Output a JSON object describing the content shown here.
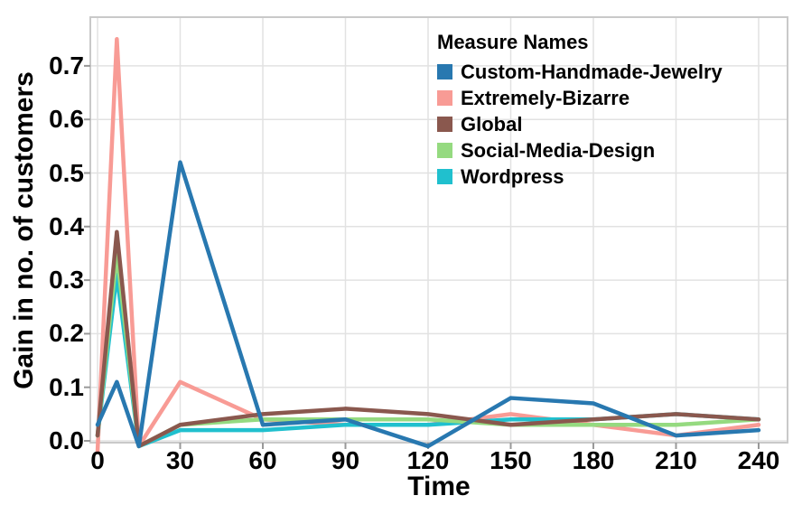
{
  "chart_data": {
    "type": "line",
    "title": "",
    "xlabel": "Time",
    "ylabel": "Gain in no. of customers",
    "legend_title": "Measure Names",
    "legend_position": "top-right-inside",
    "grid": true,
    "x": [
      0,
      7,
      15,
      30,
      60,
      90,
      120,
      150,
      180,
      210,
      240
    ],
    "xticks": [
      0,
      30,
      60,
      90,
      120,
      150,
      180,
      210,
      240
    ],
    "ytick_labels": [
      "0.0",
      "0.1",
      "0.2",
      "0.3",
      "0.4",
      "0.5",
      "0.6",
      "0.7"
    ],
    "yticks": [
      0.0,
      0.1,
      0.2,
      0.3,
      0.4,
      0.5,
      0.6,
      0.7
    ],
    "xlim": [
      0,
      240
    ],
    "ylim": [
      -0.03,
      0.79
    ],
    "series": [
      {
        "name": "Custom-Handmade-Jewelry",
        "color": "#2878b0",
        "values": [
          0.03,
          0.11,
          -0.01,
          0.52,
          0.03,
          0.04,
          -0.01,
          0.08,
          0.07,
          0.01,
          0.02
        ]
      },
      {
        "name": "Extremely-Bizarre",
        "color": "#f89b95",
        "values": [
          -0.02,
          0.75,
          -0.01,
          0.11,
          0.04,
          0.03,
          0.03,
          0.05,
          0.03,
          0.01,
          0.03
        ]
      },
      {
        "name": "Global",
        "color": "#8a584e",
        "values": [
          0.01,
          0.39,
          -0.01,
          0.03,
          0.05,
          0.06,
          0.05,
          0.03,
          0.04,
          0.05,
          0.04
        ]
      },
      {
        "name": "Social-Media-Design",
        "color": "#95da80",
        "values": [
          0.01,
          0.35,
          -0.01,
          0.03,
          0.04,
          0.04,
          0.04,
          0.03,
          0.03,
          0.03,
          0.04
        ]
      },
      {
        "name": "Wordpress",
        "color": "#20c0ce",
        "values": [
          0.01,
          0.31,
          -0.01,
          0.02,
          0.02,
          0.03,
          0.03,
          0.04,
          0.04,
          0.05,
          0.04
        ]
      }
    ],
    "colors": {
      "grid": "#e2e2e2",
      "border": "#c9c9c9",
      "tick": "#999999",
      "text": "#000000",
      "background": "#ffffff"
    }
  }
}
